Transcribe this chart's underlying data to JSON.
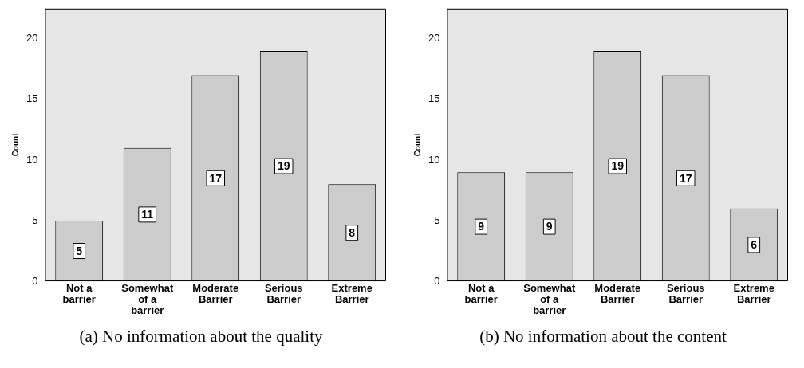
{
  "chart_data": [
    {
      "type": "bar",
      "title": "(a) No information about the quality",
      "ylabel": "Count",
      "categories": [
        "Not a barrier",
        "Somewhat of a barrier",
        "Moderate Barrier",
        "Serious Barrier",
        "Extreme Barrier"
      ],
      "values": [
        5,
        11,
        17,
        19,
        8
      ],
      "color": "#cccccc",
      "ylim": [
        0,
        22.5
      ],
      "yticks": [
        0,
        5,
        10,
        15,
        20
      ],
      "data_labels": true,
      "grid": false,
      "legend": false
    },
    {
      "type": "bar",
      "title": "(b) No information about the content",
      "ylabel": "Count",
      "categories": [
        "Not a barrier",
        "Somewhat of a barrier",
        "Moderate Barrier",
        "Serious Barrier",
        "Extreme Barrier"
      ],
      "values": [
        9,
        9,
        19,
        17,
        6
      ],
      "color": "#cccccc",
      "ylim": [
        0,
        22.5
      ],
      "yticks": [
        0,
        5,
        10,
        15,
        20
      ],
      "data_labels": true,
      "grid": false,
      "legend": false
    }
  ]
}
